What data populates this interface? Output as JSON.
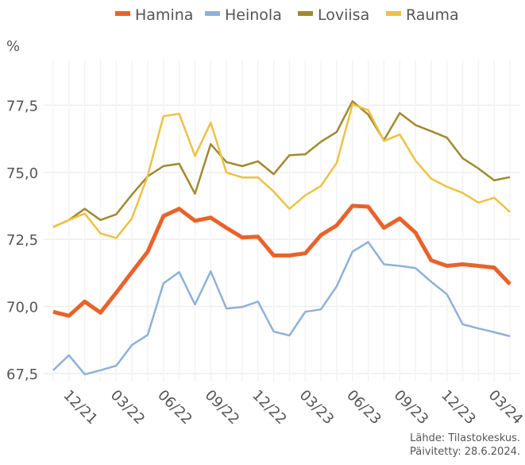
{
  "chart_data": {
    "type": "line",
    "y_label": "%",
    "source": "Lähde: Tilastokeskus.",
    "updated": "Päivitetty: 28.6.2024.",
    "categories": [
      null,
      "12/21",
      null,
      null,
      "03/22",
      null,
      null,
      "06/22",
      null,
      null,
      "09/22",
      null,
      null,
      "12/22",
      null,
      null,
      "03/23",
      null,
      null,
      "06/23",
      null,
      null,
      "09/23",
      null,
      null,
      "12/23",
      null,
      null,
      "03/24",
      null
    ],
    "series": [
      {
        "name": "Hamina",
        "color": "#e8632b",
        "values": [
          69.8,
          69.65,
          70.18,
          69.77,
          70.51,
          71.28,
          72.04,
          73.37,
          73.64,
          73.19,
          73.31,
          72.93,
          72.57,
          72.6,
          71.9,
          71.9,
          71.98,
          72.66,
          73.02,
          73.75,
          73.72,
          72.93,
          73.28,
          72.75,
          71.72,
          71.51,
          71.57,
          71.51,
          71.45,
          70.83
        ]
      },
      {
        "name": "Heinola",
        "color": "#8fb1d8",
        "values": [
          67.62,
          68.18,
          67.47,
          67.62,
          67.79,
          68.56,
          68.94,
          70.86,
          71.28,
          70.07,
          71.31,
          69.92,
          69.98,
          70.18,
          69.06,
          68.92,
          69.8,
          69.89,
          70.75,
          72.04,
          72.4,
          71.57,
          71.51,
          71.43,
          70.92,
          70.45,
          69.33,
          69.18,
          69.04,
          68.89
        ]
      },
      {
        "name": "Loviisa",
        "color": "#a08a2e",
        "values": [
          72.96,
          73.22,
          73.64,
          73.22,
          73.43,
          74.17,
          74.85,
          75.23,
          75.32,
          74.2,
          76.05,
          75.38,
          75.23,
          75.41,
          74.93,
          75.64,
          75.67,
          76.14,
          76.5,
          77.65,
          77.15,
          76.2,
          77.21,
          76.76,
          76.53,
          76.29,
          75.52,
          75.14,
          74.7,
          74.82
        ]
      },
      {
        "name": "Rauma",
        "color": "#ecc244",
        "values": [
          72.96,
          73.22,
          73.46,
          72.72,
          72.55,
          73.28,
          74.87,
          77.09,
          77.18,
          75.61,
          76.85,
          74.99,
          74.81,
          74.81,
          74.28,
          73.64,
          74.14,
          74.49,
          75.35,
          77.53,
          77.32,
          76.17,
          76.41,
          75.44,
          74.76,
          74.46,
          74.23,
          73.87,
          74.05,
          73.52
        ]
      }
    ],
    "ylim": [
      67.2,
      79.2
    ],
    "yticks": [
      {
        "value": 67.5,
        "label": "67,5"
      },
      {
        "value": 70,
        "label": "70,0"
      },
      {
        "value": 72.5,
        "label": "72,5"
      },
      {
        "value": 75,
        "label": "75,0"
      },
      {
        "value": 77.5,
        "label": "77,5"
      }
    ],
    "grid": true
  }
}
